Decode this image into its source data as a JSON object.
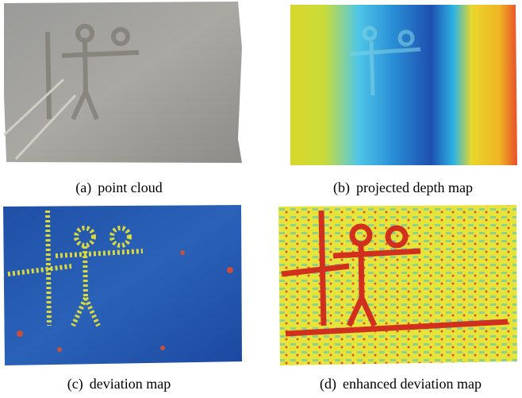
{
  "figure": {
    "panels": [
      {
        "label": "(a)",
        "caption": "point cloud"
      },
      {
        "label": "(b)",
        "caption": "projected depth map"
      },
      {
        "label": "(c)",
        "caption": "deviation map"
      },
      {
        "label": "(d)",
        "caption": "enhanced deviation map"
      }
    ]
  }
}
